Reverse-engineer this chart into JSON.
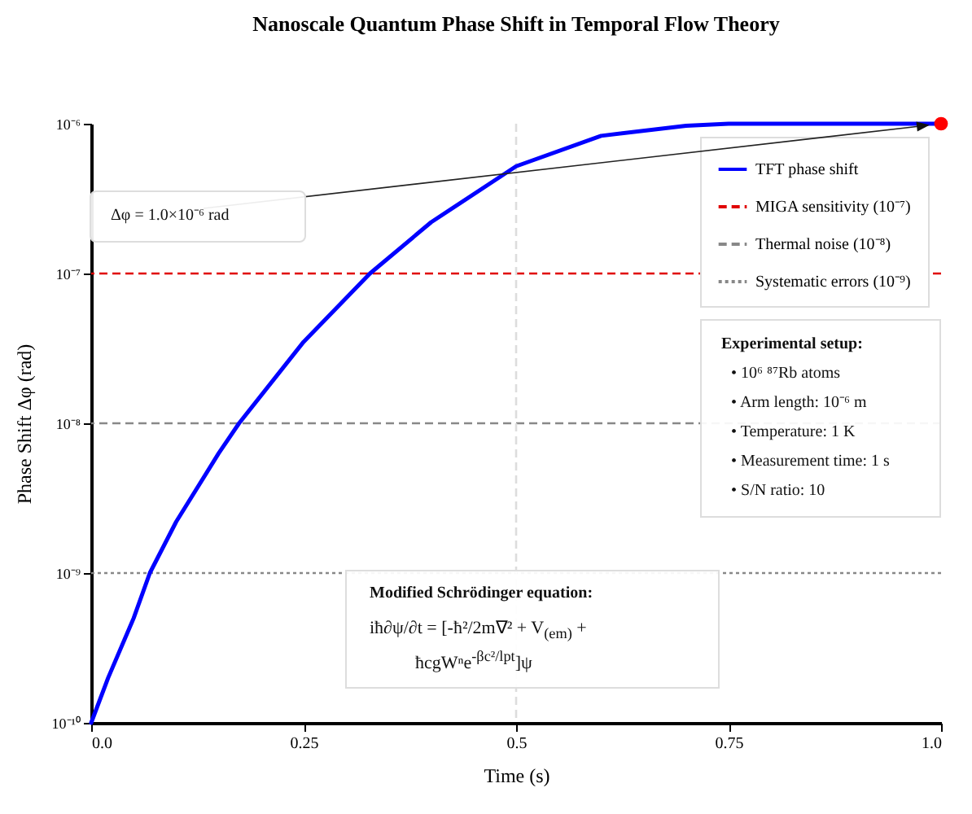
{
  "chart_data": {
    "type": "line",
    "title": "Nanoscale Quantum Phase Shift in Temporal Flow Theory",
    "xlabel": "Time (s)",
    "ylabel": "Phase Shift Δφ (rad)",
    "series": [
      {
        "name": "TFT phase shift",
        "color": "#0000ff",
        "x": [
          0,
          0.02,
          0.05,
          0.069,
          0.1,
          0.15,
          0.174,
          0.25,
          0.328,
          0.4,
          0.5,
          0.6,
          0.7,
          0.75,
          0.85,
          1.0
        ],
        "values": [
          1e-10,
          2e-10,
          5e-10,
          1e-09,
          2.2e-09,
          6.3e-09,
          1e-08,
          3.5e-08,
          1e-07,
          2.2e-07,
          5.2e-07,
          8.3e-07,
          9.7e-07,
          1e-06,
          1e-06,
          1e-06
        ]
      },
      {
        "type": "scatter",
        "color": "#ff0000",
        "x": [
          1.0
        ],
        "values": [
          1e-06
        ]
      }
    ],
    "log": "y",
    "xlim": [
      0,
      1
    ],
    "xticks": [
      {
        "value": 0,
        "label": "0.0"
      },
      0.25,
      0.5,
      0.75,
      {
        "value": 1,
        "label": "1.0"
      }
    ],
    "ylim": [
      1e-10,
      1e-06
    ],
    "yticks": [
      {
        "value": 1e-10,
        "label": "10⁻¹⁰"
      },
      {
        "value": 1e-09,
        "label": "10⁻⁹"
      },
      {
        "value": 1e-08,
        "label": "10⁻⁸"
      },
      {
        "value": 1e-07,
        "label": "10⁻⁷"
      },
      {
        "value": 1e-06,
        "label": "10⁻⁶"
      }
    ],
    "ref_lines": [
      {
        "axis": "y",
        "value": 1e-07,
        "label": "MIGA sensitivity (10⁻⁷)",
        "color": "#e00000",
        "line_style": "dashed"
      },
      {
        "axis": "y",
        "value": 1e-08,
        "label": "Thermal noise (10⁻⁸)",
        "color": "#888888",
        "line_style": "dashed"
      },
      {
        "axis": "y",
        "value": 1e-09,
        "label": "Systematic errors (10⁻⁹)",
        "color": "#888888",
        "line_style": "dotted"
      },
      {
        "axis": "x",
        "value": 0.5,
        "color": "#dddddd",
        "line_style": "dashed"
      }
    ],
    "annotations": [
      "Δφ = 1.0×10⁻⁶ rad",
      "Experimental setup:",
      "• 10⁶ ⁸⁷Rb atoms",
      "• Arm length: 10⁻⁶ m",
      "• Temperature: 1 K",
      "• Measurement time: 1 s",
      "• S/N ratio: 10",
      "Modified Schrödinger equation:",
      "iħ∂ψ/∂t = [-ħ²/2m∇² + V$_{(em)}$ + ħcgWⁿe$^{-βc²/lpt}$]ψ"
    ],
    "legend": "top right",
    "grid": false,
    "line_style": "solid"
  }
}
